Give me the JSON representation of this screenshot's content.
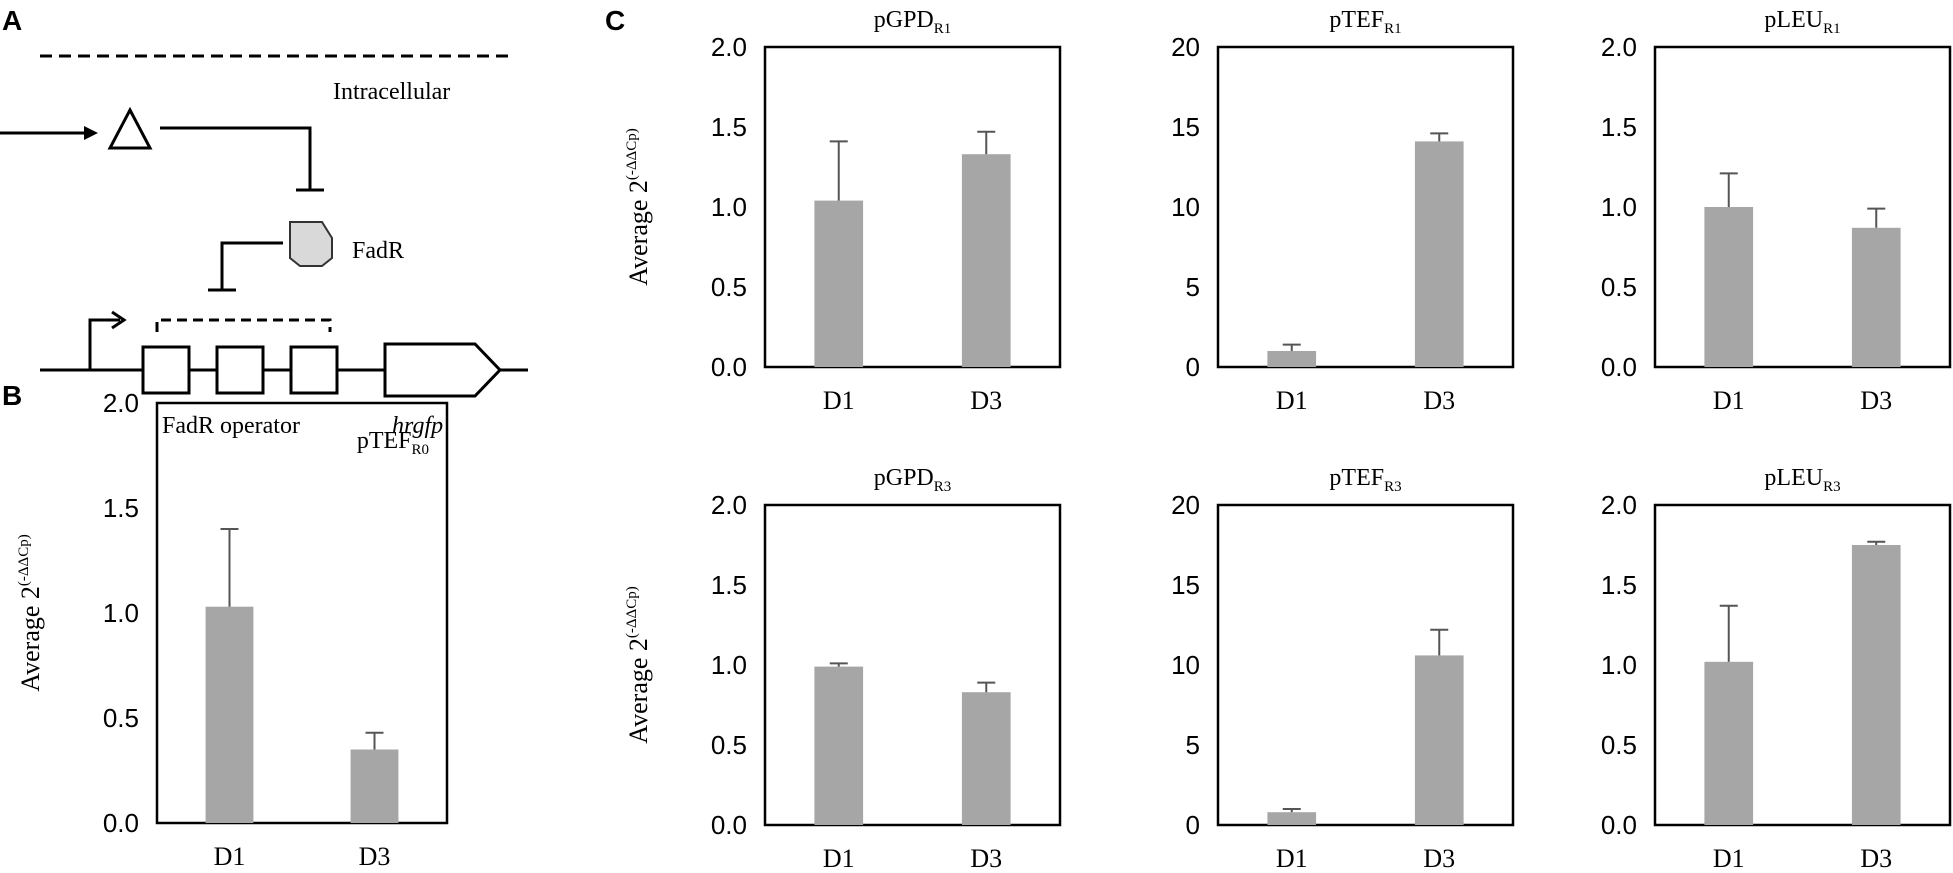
{
  "figure": {
    "panel_labels": {
      "a": "A",
      "b": "B",
      "c": "C"
    },
    "colors": {
      "bar": "#a6a6a6",
      "axis": "#000000",
      "fadr_protein": "#d9d9d9"
    }
  },
  "schematic": {
    "intracellular_label": "Intracellular",
    "fadr_label": "FadR",
    "operator_label": "FadR operator",
    "gene_label": "hrgfp"
  },
  "chart_data": [
    {
      "id": "b",
      "type": "bar",
      "title": "pTEF",
      "title_sub": "R0",
      "ylabel": "Average 2",
      "ylabel_sup": "(-ΔΔCp)",
      "categories": [
        "D1",
        "D3"
      ],
      "values": [
        1.03,
        0.35
      ],
      "errors": [
        0.37,
        0.08
      ],
      "ylim": [
        0,
        2.0
      ],
      "yticks": [
        "0.0",
        "0.5",
        "1.0",
        "1.5",
        "2.0"
      ]
    },
    {
      "id": "c1",
      "type": "bar",
      "title": "pGPD",
      "title_sub": "R1",
      "ylabel": "Average 2",
      "ylabel_sup": "(-ΔΔCp)",
      "categories": [
        "D1",
        "D3"
      ],
      "values": [
        1.04,
        1.33
      ],
      "errors": [
        0.37,
        0.14
      ],
      "ylim": [
        0,
        2.0
      ],
      "yticks": [
        "0.0",
        "0.5",
        "1.0",
        "1.5",
        "2.0"
      ]
    },
    {
      "id": "c2",
      "type": "bar",
      "title": "pTEF",
      "title_sub": "R1",
      "ylabel": "",
      "ylabel_sup": "",
      "categories": [
        "D1",
        "D3"
      ],
      "values": [
        1.0,
        14.1
      ],
      "errors": [
        0.4,
        0.5
      ],
      "ylim": [
        0,
        20
      ],
      "yticks": [
        "0",
        "5",
        "10",
        "15",
        "20"
      ]
    },
    {
      "id": "c3",
      "type": "bar",
      "title": "pLEU",
      "title_sub": "R1",
      "ylabel": "",
      "ylabel_sup": "",
      "categories": [
        "D1",
        "D3"
      ],
      "values": [
        1.0,
        0.87
      ],
      "errors": [
        0.21,
        0.12
      ],
      "ylim": [
        0,
        2.0
      ],
      "yticks": [
        "0.0",
        "0.5",
        "1.0",
        "1.5",
        "2.0"
      ]
    },
    {
      "id": "c4",
      "type": "bar",
      "title": "pGPD",
      "title_sub": "R3",
      "ylabel": "Average 2",
      "ylabel_sup": "(-ΔΔCp)",
      "categories": [
        "D1",
        "D3"
      ],
      "values": [
        0.99,
        0.83
      ],
      "errors": [
        0.02,
        0.06
      ],
      "ylim": [
        0,
        2.0
      ],
      "yticks": [
        "0.0",
        "0.5",
        "1.0",
        "1.5",
        "2.0"
      ]
    },
    {
      "id": "c5",
      "type": "bar",
      "title": "pTEF",
      "title_sub": "R3",
      "ylabel": "",
      "ylabel_sup": "",
      "categories": [
        "D1",
        "D3"
      ],
      "values": [
        0.8,
        10.6
      ],
      "errors": [
        0.2,
        1.6
      ],
      "ylim": [
        0,
        20
      ],
      "yticks": [
        "0",
        "5",
        "10",
        "15",
        "20"
      ]
    },
    {
      "id": "c6",
      "type": "bar",
      "title": "pLEU",
      "title_sub": "R3",
      "ylabel": "",
      "ylabel_sup": "",
      "categories": [
        "D1",
        "D3"
      ],
      "values": [
        1.02,
        1.75
      ],
      "errors": [
        0.35,
        0.02
      ],
      "ylim": [
        0,
        2.0
      ],
      "yticks": [
        "0.0",
        "0.5",
        "1.0",
        "1.5",
        "2.0"
      ]
    }
  ]
}
